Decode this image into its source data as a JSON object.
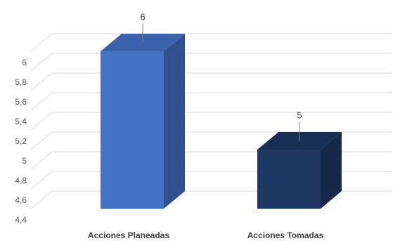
{
  "chart_data": {
    "type": "bar",
    "style": "3d-clustered-column",
    "categories": [
      "Acciones Planeadas",
      "Acciones Tomadas"
    ],
    "values": [
      6,
      5
    ],
    "data_labels": [
      "6",
      "5"
    ],
    "ylim": [
      4.4,
      6.0
    ],
    "yticks": [
      "4,4",
      "4,6",
      "4,8",
      "5",
      "5,2",
      "5,4",
      "5,6",
      "5,8",
      "6"
    ],
    "ytick_values": [
      4.4,
      4.6,
      4.8,
      5.0,
      5.2,
      5.4,
      5.6,
      5.8,
      6.0
    ],
    "grid": true,
    "legend": "none",
    "title": "",
    "xlabel": "",
    "ylabel": "",
    "colors": {
      "bars_front": [
        "#4472c4",
        "#203864"
      ],
      "bars_side": [
        "#2f528f",
        "#17284a"
      ],
      "bars_top": [
        "#3a62aa",
        "#1a2f56"
      ],
      "grid": "#d9d9d9"
    }
  }
}
